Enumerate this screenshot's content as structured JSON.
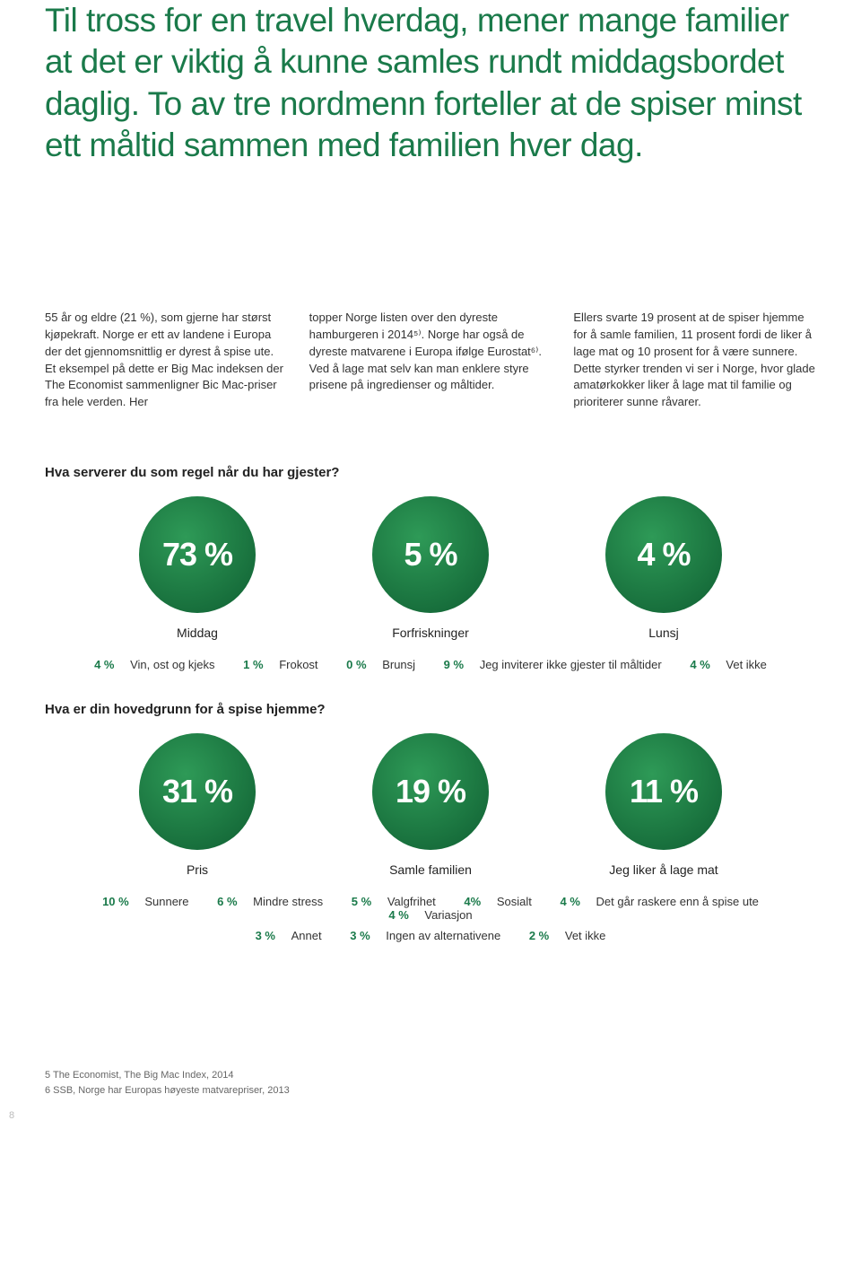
{
  "headline": "Til tross for en travel hverdag, mener mange familier at det er viktig å kunne samles rundt middagsbordet daglig. To av tre nordmenn forteller at de spiser minst ett måltid sammen med familien hver dag.",
  "bodyCols": [
    "55 år og eldre (21 %), som gjerne har størst kjøpekraft. Norge er ett av landene i Europa der det gjennomsnittlig er dyrest å spise ute. Et eksempel på dette er Big Mac indeksen der The Economist sammenlig­ner Bic Mac-priser fra hele verden. Her",
    "topper Norge listen over den dyreste hamburgeren i 2014⁵⁾. Norge har også de dyreste matvarene i Europa ifølge Eu­rostat⁶⁾. Ved å lage mat selv kan man enklere styre prisene på ingredienser og måltider.",
    "Ellers svarte 19 prosent at de spiser hjemme for å samle familien, 11 prosent fordi de liker å lage mat og 10 prosent for å være sunnere. Dette styrker trenden vi ser i Norge, hvor glade amatørkokker liker å lage mat til familie og prioriterer sunne råvarer."
  ],
  "q1": {
    "title": "Hva serverer du som regel når du har gjester?",
    "bubbles": [
      {
        "pct": "73 %",
        "label": "Middag"
      },
      {
        "pct": "5 %",
        "label": "Forfriskninger"
      },
      {
        "pct": "4 %",
        "label": "Lunsj"
      }
    ],
    "extras": [
      {
        "p": "4 %",
        "t": "Vin, ost og kjeks"
      },
      {
        "p": "1 %",
        "t": "Frokost"
      },
      {
        "p": "0 %",
        "t": "Brunsj"
      },
      {
        "p": "9 %",
        "t": "Jeg inviterer ikke gjester til måltider"
      },
      {
        "p": "4 %",
        "t": "Vet ikke"
      }
    ]
  },
  "q2": {
    "title": "Hva er din hovedgrunn for å spise hjemme?",
    "bubbles": [
      {
        "pct": "31 %",
        "label": "Pris"
      },
      {
        "pct": "19 %",
        "label": "Samle familien"
      },
      {
        "pct": "11 %",
        "label": "Jeg liker å lage mat"
      }
    ],
    "extrasRow1": [
      {
        "p": "10 %",
        "t": "Sunnere"
      },
      {
        "p": "6 %",
        "t": "Mindre stress"
      },
      {
        "p": "5 %",
        "t": "Valgfrihet"
      },
      {
        "p": "4%",
        "t": "Sosialt"
      },
      {
        "p": "4 %",
        "t": "Det går raskere enn å spise ute"
      },
      {
        "p": "4 %",
        "t": "Variasjon"
      }
    ],
    "extrasRow2": [
      {
        "p": "3 %",
        "t": "Annet"
      },
      {
        "p": "3 %",
        "t": "Ingen av alternativene"
      },
      {
        "p": "2 %",
        "t": "Vet ikke"
      }
    ]
  },
  "footnotes": [
    "5 The Economist, The Big Mac Index, 2014",
    "6 SSB, Norge har Europas høyeste matvarepriser, 2013"
  ],
  "pageNum": "8",
  "style": {
    "headlineColor": "#1a7a4a",
    "bubbleGradFrom": "#2e9a57",
    "bubbleGradTo": "#156a39",
    "pctColor": "#1a7a4a",
    "bubbleSize": 130,
    "bubbleFontSize": 36
  }
}
